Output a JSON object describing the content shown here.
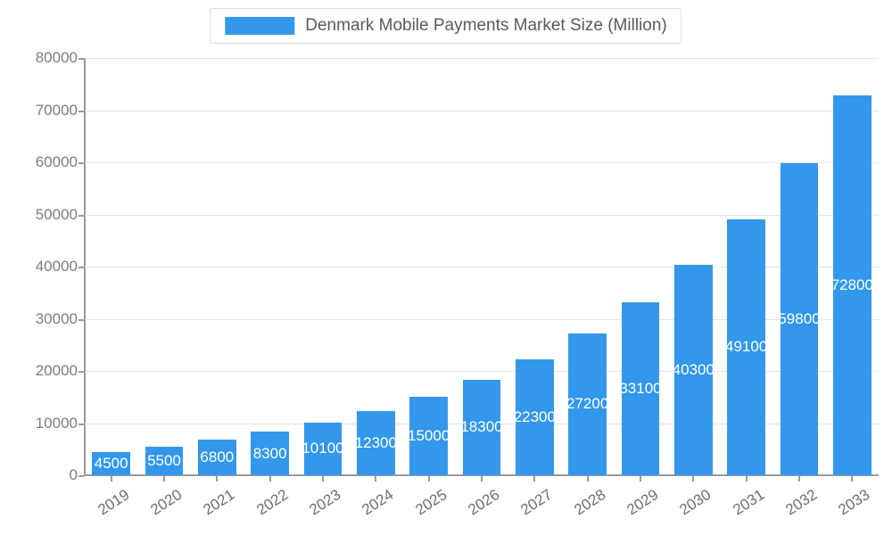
{
  "chart_data": {
    "type": "bar",
    "title": "Denmark Mobile Payments Market Size (Million)",
    "categories": [
      "2019",
      "2020",
      "2021",
      "2022",
      "2023",
      "2024",
      "2025",
      "2026",
      "2027",
      "2028",
      "2029",
      "2030",
      "2031",
      "2032",
      "2033"
    ],
    "values": [
      4500,
      5500,
      6800,
      8300,
      10100,
      12300,
      15000,
      18300,
      22300,
      27200,
      33100,
      40300,
      49100,
      59800,
      72800
    ],
    "xlabel": "",
    "ylabel": "",
    "ylim": [
      0,
      80000
    ],
    "ytick_step": 10000,
    "ytick_labels": [
      "0",
      "10000",
      "20000",
      "30000",
      "40000",
      "50000",
      "60000",
      "70000",
      "80000"
    ],
    "grid": true,
    "legend_position": "top-center",
    "bar_color": "#3398ec",
    "data_label_color": "#ffffff",
    "grid_color": "#e3e3e3",
    "axis_color": "#9a9a9a",
    "tick_label_color": "#6e6e6e",
    "title_color": "#5a5a5a"
  }
}
